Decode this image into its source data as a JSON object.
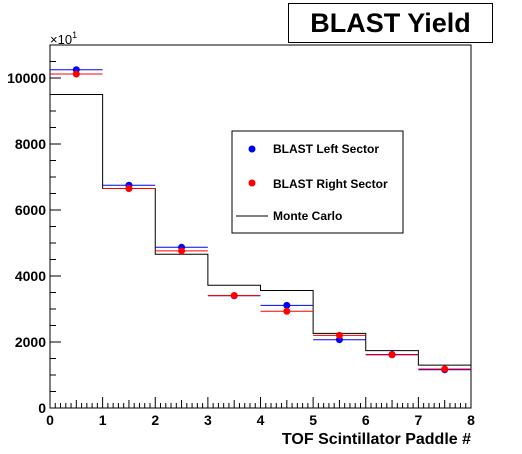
{
  "chart_data": {
    "type": "scatter",
    "title": "BLAST Yield",
    "xlabel": "TOF Scintillator Paddle #",
    "ylabel": "",
    "y_multiplier": "×10",
    "y_multiplier_exp": "1",
    "xlim": [
      0,
      8
    ],
    "ylim": [
      0,
      11000
    ],
    "x_ticks": [
      "0",
      "1",
      "2",
      "3",
      "4",
      "5",
      "6",
      "7",
      "8"
    ],
    "y_ticks": [
      "0",
      "2000",
      "4000",
      "6000",
      "8000",
      "10000"
    ],
    "grid": false,
    "legend_position": "center-right",
    "series": [
      {
        "name": "BLAST Left Sector",
        "kind": "points",
        "color": "#0000ff",
        "x": [
          0.5,
          1.5,
          2.5,
          3.5,
          4.5,
          5.5,
          6.5,
          7.5
        ],
        "y": [
          10250,
          6750,
          4870,
          3400,
          3110,
          2070,
          1620,
          1160
        ]
      },
      {
        "name": "BLAST Right Sector",
        "kind": "points",
        "color": "#ff0000",
        "x": [
          0.5,
          1.5,
          2.5,
          3.5,
          4.5,
          5.5,
          6.5,
          7.5
        ],
        "y": [
          10120,
          6650,
          4760,
          3410,
          2930,
          2200,
          1610,
          1180
        ]
      },
      {
        "name": "Monte Carlo",
        "kind": "histogram",
        "color": "#000000",
        "bin_edges": [
          0,
          1,
          2,
          3,
          4,
          5,
          6,
          7,
          8
        ],
        "values": [
          9500,
          6650,
          4660,
          3720,
          3560,
          2260,
          1740,
          1300
        ]
      }
    ]
  }
}
